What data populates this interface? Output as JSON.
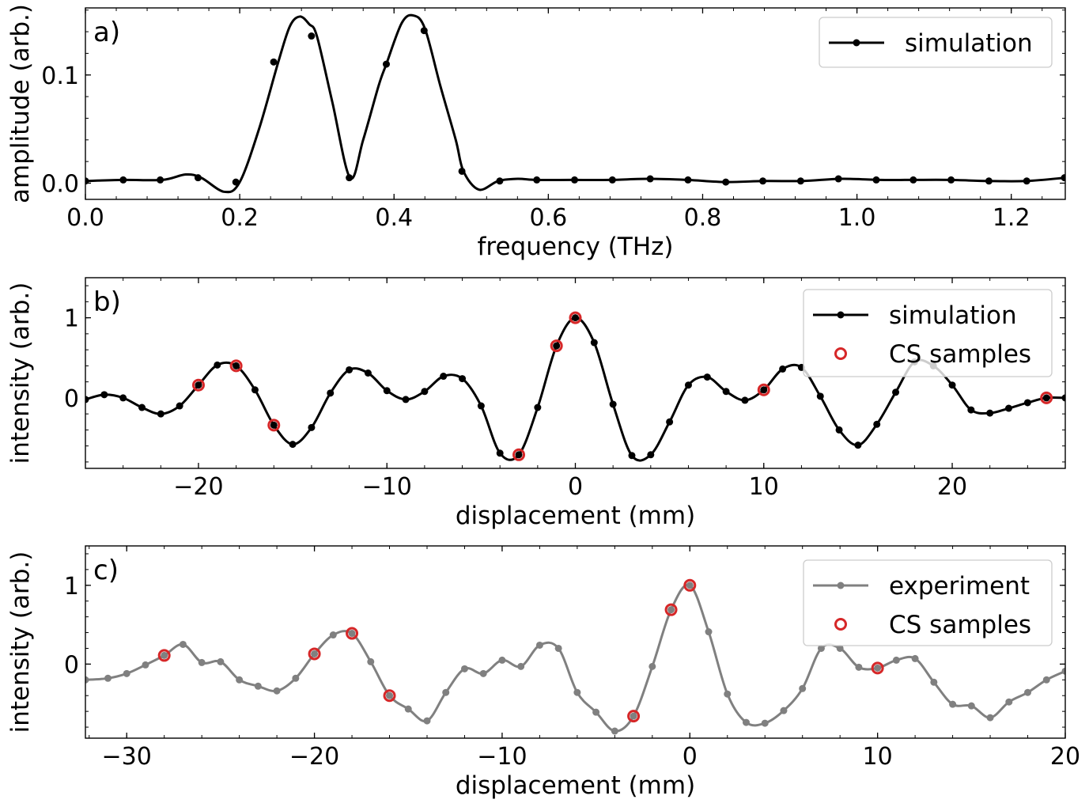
{
  "chart_data": [
    {
      "type": "line",
      "panel_label": "a)",
      "xlabel": "frequency (THz)",
      "ylabel": "amplitude (arb.)",
      "xlim": [
        0.0,
        1.27
      ],
      "ylim": [
        -0.015,
        0.162
      ],
      "xticks": [
        0.0,
        0.2,
        0.4,
        0.6,
        0.8,
        1.0,
        1.2
      ],
      "xtick_labels": [
        "0.0",
        "0.2",
        "0.4",
        "0.6",
        "0.8",
        "1.0",
        "1.2"
      ],
      "yticks": [
        0.0,
        0.1
      ],
      "ytick_labels": [
        "0.0",
        "0.1"
      ],
      "legend": {
        "position": "upper-right",
        "entries": [
          {
            "label": "simulation",
            "marker": "dot-line",
            "color": "#000000"
          }
        ]
      },
      "series": [
        {
          "name": "simulation",
          "color": "#000000",
          "curve": [
            [
              0.0,
              0.002
            ],
            [
              0.05,
              0.003
            ],
            [
              0.1,
              0.003
            ],
            [
              0.13,
              0.008
            ],
            [
              0.15,
              0.005
            ],
            [
              0.18,
              -0.008
            ],
            [
              0.2,
              0.001
            ],
            [
              0.225,
              0.05
            ],
            [
              0.25,
              0.112
            ],
            [
              0.265,
              0.145
            ],
            [
              0.278,
              0.154
            ],
            [
              0.29,
              0.147
            ],
            [
              0.3,
              0.136
            ],
            [
              0.32,
              0.075
            ],
            [
              0.343,
              0.005
            ],
            [
              0.36,
              0.04
            ],
            [
              0.38,
              0.09
            ],
            [
              0.39,
              0.11
            ],
            [
              0.41,
              0.148
            ],
            [
              0.425,
              0.155
            ],
            [
              0.44,
              0.143
            ],
            [
              0.46,
              0.09
            ],
            [
              0.48,
              0.04
            ],
            [
              0.49,
              0.011
            ],
            [
              0.51,
              -0.006
            ],
            [
              0.535,
              0.002
            ],
            [
              0.56,
              0.004
            ],
            [
              0.585,
              0.003
            ],
            [
              0.63,
              0.003
            ],
            [
              0.68,
              0.003
            ],
            [
              0.73,
              0.004
            ],
            [
              0.78,
              0.003
            ],
            [
              0.83,
              0.001
            ],
            [
              0.88,
              0.002
            ],
            [
              0.93,
              0.002
            ],
            [
              0.98,
              0.004
            ],
            [
              1.03,
              0.003
            ],
            [
              1.07,
              0.003
            ],
            [
              1.12,
              0.003
            ],
            [
              1.17,
              0.002
            ],
            [
              1.22,
              0.002
            ],
            [
              1.27,
              0.005
            ]
          ],
          "markers": [
            [
              0.0,
              0.002
            ],
            [
              0.049,
              0.003
            ],
            [
              0.097,
              0.003
            ],
            [
              0.146,
              0.005
            ],
            [
              0.195,
              0.001
            ],
            [
              0.244,
              0.112
            ],
            [
              0.293,
              0.136
            ],
            [
              0.342,
              0.005
            ],
            [
              0.39,
              0.11
            ],
            [
              0.439,
              0.141
            ],
            [
              0.488,
              0.011
            ],
            [
              0.537,
              0.002
            ],
            [
              0.585,
              0.003
            ],
            [
              0.634,
              0.003
            ],
            [
              0.683,
              0.003
            ],
            [
              0.732,
              0.004
            ],
            [
              0.781,
              0.003
            ],
            [
              0.83,
              0.001
            ],
            [
              0.878,
              0.002
            ],
            [
              0.927,
              0.002
            ],
            [
              0.976,
              0.004
            ],
            [
              1.025,
              0.003
            ],
            [
              1.073,
              0.003
            ],
            [
              1.122,
              0.003
            ],
            [
              1.171,
              0.002
            ],
            [
              1.22,
              0.002
            ],
            [
              1.269,
              0.005
            ]
          ]
        }
      ]
    },
    {
      "type": "line",
      "panel_label": "b)",
      "xlabel": "displacement (mm)",
      "ylabel": "intensity (arb.)",
      "xlim": [
        -26,
        26
      ],
      "ylim": [
        -0.88,
        1.5
      ],
      "xticks": [
        -20,
        -10,
        0,
        10,
        20
      ],
      "xtick_labels": [
        "−20",
        "−10",
        "0",
        "10",
        "20"
      ],
      "yticks": [
        0,
        1
      ],
      "ytick_labels": [
        "0",
        "1"
      ],
      "legend": {
        "position": "upper-right",
        "entries": [
          {
            "label": "simulation",
            "marker": "dot-line",
            "color": "#000000"
          },
          {
            "label": "CS samples",
            "marker": "open-circle",
            "color": "#d62728"
          }
        ]
      },
      "series": [
        {
          "name": "simulation",
          "color": "#000000",
          "points": [
            [
              -26,
              -0.02
            ],
            [
              -25,
              0.04
            ],
            [
              -24,
              0.0
            ],
            [
              -23,
              -0.12
            ],
            [
              -22,
              -0.2
            ],
            [
              -21,
              -0.1
            ],
            [
              -20,
              0.16
            ],
            [
              -19,
              0.41
            ],
            [
              -18,
              0.4
            ],
            [
              -17,
              0.1
            ],
            [
              -16,
              -0.34
            ],
            [
              -15,
              -0.58
            ],
            [
              -14,
              -0.37
            ],
            [
              -13,
              0.06
            ],
            [
              -12,
              0.35
            ],
            [
              -11,
              0.31
            ],
            [
              -10,
              0.09
            ],
            [
              -9,
              -0.02
            ],
            [
              -8,
              0.08
            ],
            [
              -7,
              0.27
            ],
            [
              -6,
              0.24
            ],
            [
              -5,
              -0.1
            ],
            [
              -4,
              -0.69
            ],
            [
              -3,
              -0.71
            ],
            [
              -2,
              -0.12
            ],
            [
              -1,
              0.65
            ],
            [
              0,
              1.0
            ],
            [
              1,
              0.69
            ],
            [
              2,
              -0.08
            ],
            [
              3,
              -0.72
            ],
            [
              4,
              -0.71
            ],
            [
              5,
              -0.3
            ],
            [
              6,
              0.16
            ],
            [
              7,
              0.26
            ],
            [
              8,
              0.08
            ],
            [
              9,
              -0.03
            ],
            [
              10,
              0.1
            ],
            [
              11,
              0.36
            ],
            [
              12,
              0.38
            ],
            [
              13,
              0.02
            ],
            [
              14,
              -0.4
            ],
            [
              15,
              -0.59
            ],
            [
              16,
              -0.33
            ],
            [
              17,
              0.07
            ],
            [
              18,
              0.45
            ],
            [
              19,
              0.4
            ],
            [
              20,
              0.16
            ],
            [
              21,
              -0.15
            ],
            [
              22,
              -0.19
            ],
            [
              23,
              -0.13
            ],
            [
              24,
              -0.06
            ],
            [
              25,
              0.0
            ],
            [
              26,
              0.0
            ]
          ]
        },
        {
          "name": "CS samples",
          "color": "#d62728",
          "points": [
            [
              -20,
              0.16
            ],
            [
              -18,
              0.4
            ],
            [
              -16,
              -0.34
            ],
            [
              -3,
              -0.71
            ],
            [
              -1,
              0.65
            ],
            [
              0,
              1.0
            ],
            [
              10,
              0.1
            ],
            [
              25,
              0.0
            ]
          ]
        }
      ]
    },
    {
      "type": "line",
      "panel_label": "c)",
      "xlabel": "displacement (mm)",
      "ylabel": "intensity (arb.)",
      "xlim": [
        -32.2,
        20
      ],
      "ylim": [
        -0.94,
        1.5
      ],
      "xticks": [
        -30,
        -20,
        -10,
        0,
        10,
        20
      ],
      "xtick_labels": [
        "−30",
        "−20",
        "−10",
        "0",
        "10",
        "20"
      ],
      "yticks": [
        0,
        1
      ],
      "ytick_labels": [
        "0",
        "1"
      ],
      "legend": {
        "position": "upper-right",
        "entries": [
          {
            "label": "experiment",
            "marker": "dot-line",
            "color": "#808080"
          },
          {
            "label": "CS samples",
            "marker": "open-circle",
            "color": "#d62728"
          }
        ]
      },
      "series": [
        {
          "name": "experiment",
          "color": "#808080",
          "points": [
            [
              -32.2,
              -0.2
            ],
            [
              -31,
              -0.18
            ],
            [
              -30,
              -0.12
            ],
            [
              -29,
              -0.01
            ],
            [
              -28,
              0.11
            ],
            [
              -27,
              0.25
            ],
            [
              -26,
              0.02
            ],
            [
              -25,
              0.03
            ],
            [
              -24,
              -0.2
            ],
            [
              -23,
              -0.28
            ],
            [
              -22,
              -0.34
            ],
            [
              -21,
              -0.18
            ],
            [
              -20,
              0.13
            ],
            [
              -19,
              0.37
            ],
            [
              -18,
              0.39
            ],
            [
              -17,
              0.03
            ],
            [
              -16,
              -0.4
            ],
            [
              -15,
              -0.57
            ],
            [
              -14,
              -0.72
            ],
            [
              -13,
              -0.36
            ],
            [
              -12,
              -0.06
            ],
            [
              -11,
              -0.12
            ],
            [
              -10,
              0.05
            ],
            [
              -9,
              -0.03
            ],
            [
              -8,
              0.24
            ],
            [
              -7,
              0.2
            ],
            [
              -6,
              -0.36
            ],
            [
              -5,
              -0.61
            ],
            [
              -4,
              -0.85
            ],
            [
              -3,
              -0.66
            ],
            [
              -2,
              -0.03
            ],
            [
              -1,
              0.69
            ],
            [
              0,
              1.0
            ],
            [
              1,
              0.41
            ],
            [
              2,
              -0.38
            ],
            [
              3,
              -0.74
            ],
            [
              4,
              -0.75
            ],
            [
              5,
              -0.59
            ],
            [
              6,
              -0.31
            ],
            [
              7,
              0.2
            ],
            [
              8,
              0.2
            ],
            [
              9,
              -0.04
            ],
            [
              10,
              -0.05
            ],
            [
              11,
              0.05
            ],
            [
              12,
              0.07
            ],
            [
              13,
              -0.23
            ],
            [
              14,
              -0.51
            ],
            [
              15,
              -0.53
            ],
            [
              16,
              -0.68
            ],
            [
              17,
              -0.48
            ],
            [
              18,
              -0.36
            ],
            [
              19,
              -0.2
            ],
            [
              20,
              -0.09
            ]
          ]
        },
        {
          "name": "CS samples",
          "color": "#d62728",
          "points": [
            [
              -28,
              0.11
            ],
            [
              -20,
              0.13
            ],
            [
              -18,
              0.39
            ],
            [
              -16,
              -0.4
            ],
            [
              -3,
              -0.66
            ],
            [
              -1,
              0.69
            ],
            [
              0,
              1.0
            ],
            [
              10,
              -0.05
            ]
          ]
        }
      ]
    }
  ]
}
